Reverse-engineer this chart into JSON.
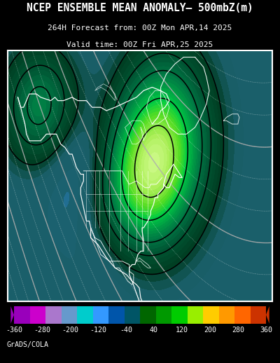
{
  "title_line1": "NCEP ENSEMBLE MEAN ANOMALY– 500mbZ(m)",
  "title_line2": "264H Forecast from: 00Z Mon APR,14 2025",
  "title_line3": "Valid time: 00Z Fri APR,25 2025",
  "bg_color": "#000000",
  "map_bg_color": "#1a5f6a",
  "colorbar_label_values": [
    -360,
    -280,
    -200,
    -120,
    -40,
    40,
    120,
    200,
    280,
    360
  ],
  "cb_colors": [
    "#9900bb",
    "#cc00cc",
    "#aa77cc",
    "#6699cc",
    "#00cccc",
    "#3399ff",
    "#0055aa",
    "#005566",
    "#006600",
    "#009900",
    "#00cc00",
    "#99ee00",
    "#ffcc00",
    "#ff9900",
    "#ff6600",
    "#cc3300"
  ],
  "attribution": "GrADS/COLA",
  "fig_width": 4.0,
  "fig_height": 5.18
}
